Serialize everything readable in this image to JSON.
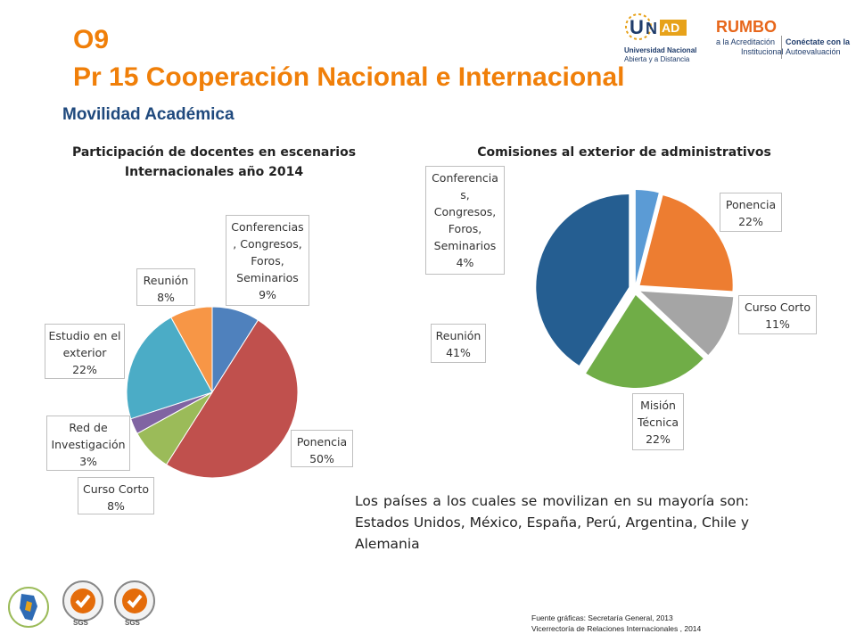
{
  "slide": {
    "code": "O9",
    "title": "Pr 15 Cooperación Nacional e Internacional",
    "subtitle": "Movilidad Académica"
  },
  "logos": {
    "unad_mark": "UNAD",
    "unad_name_line1": "Universidad Nacional",
    "unad_name_line2": "Abierta y a Distancia",
    "rumbo_word": "RUMBO",
    "rumbo_line1": "a la Acreditación",
    "rumbo_line2": "Institucional",
    "rumbo_right1": "Conéctate con la",
    "rumbo_right2": "Autoevaluación",
    "cert_label": "SGS"
  },
  "chart_data": [
    {
      "type": "pie",
      "title": "Participación de docentes en escenarios Internacionales año 2014",
      "title_lines": [
        "Participación de docentes en escenarios",
        "Internacionales año 2014"
      ],
      "categories": [
        "Conferencias, Congresos, Foros, Seminarios",
        "Ponencia",
        "Curso Corto",
        "Red de Investigación",
        "Estudio en el exterior",
        "Reunión"
      ],
      "values": [
        9,
        50,
        8,
        3,
        22,
        8
      ],
      "colors": [
        "#4f81bd",
        "#c0504d",
        "#9bbb59",
        "#8064a2",
        "#4bacc6",
        "#f79646"
      ],
      "data_labels": [
        {
          "lines": [
            "Conferencias",
            ", Congresos,",
            "Foros,",
            "Seminarios",
            "9%"
          ]
        },
        {
          "lines": [
            "Ponencia",
            "50%"
          ]
        },
        {
          "lines": [
            "Curso Corto",
            "8%"
          ]
        },
        {
          "lines": [
            "Red de",
            "Investigación",
            "3%"
          ]
        },
        {
          "lines": [
            "Estudio en el",
            "exterior",
            "22%"
          ]
        },
        {
          "lines": [
            "Reunión",
            "8%"
          ]
        }
      ]
    },
    {
      "type": "pie",
      "title": "Comisiones al exterior de administrativos",
      "title_lines": [
        "Comisiones al exterior de administrativos"
      ],
      "categories": [
        "Conferencias, Congresos, Foros, Seminarios",
        "Ponencia",
        "Curso Corto",
        "Misión Técnica",
        "Reunión"
      ],
      "values": [
        4,
        22,
        11,
        22,
        41
      ],
      "colors": [
        "#5b9bd5",
        "#ed7d31",
        "#a5a5a5",
        "#70ad47",
        "#255e91"
      ],
      "data_labels": [
        {
          "lines": [
            "Conferencia",
            "s,",
            "Congresos,",
            "Foros,",
            "Seminarios",
            "4%"
          ]
        },
        {
          "lines": [
            "Ponencia",
            "22%"
          ]
        },
        {
          "lines": [
            "Curso Corto",
            "11%"
          ]
        },
        {
          "lines": [
            "Misión",
            "Técnica",
            "22%"
          ]
        },
        {
          "lines": [
            "Reunión",
            "41%"
          ]
        }
      ]
    }
  ],
  "note": "Los países a los cuales se movilizan en su mayoría son: Estados Unidos, México, España, Perú, Argentina, Chile y Alemania",
  "source": {
    "line1": "Fuente gráficas: Secretaría General, 2013",
    "line2": "Vicerrectoría de Relaciones Internacionales , 2014"
  }
}
